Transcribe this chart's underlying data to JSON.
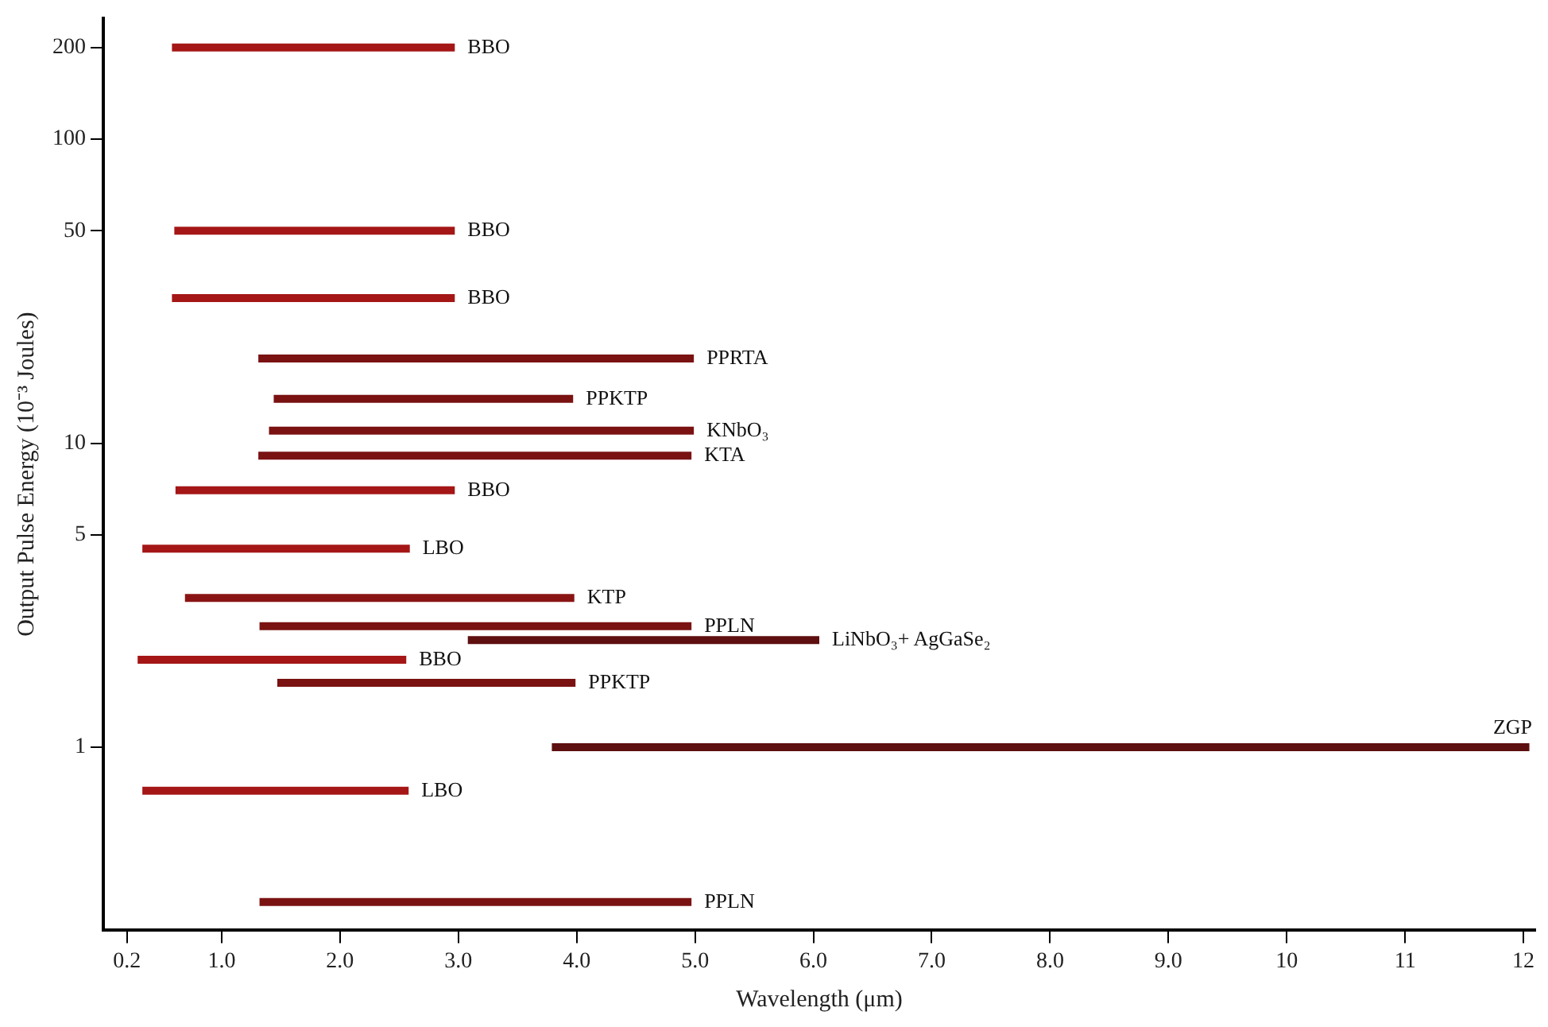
{
  "chart_data": {
    "type": "line",
    "xlabel": "Wavelength (μm)",
    "ylabel": "Output Pulse Energy (10⁻³ Joules)",
    "xlim": [
      0,
      12.1
    ],
    "xticks": [
      {
        "value": 0.2,
        "label": "0.2"
      },
      {
        "value": 1,
        "label": "1.0"
      },
      {
        "value": 2,
        "label": "2.0"
      },
      {
        "value": 3,
        "label": "3.0"
      },
      {
        "value": 4,
        "label": "4.0"
      },
      {
        "value": 5,
        "label": "5.0"
      },
      {
        "value": 6,
        "label": "6.0"
      },
      {
        "value": 7,
        "label": "7.0"
      },
      {
        "value": 8,
        "label": "8.0"
      },
      {
        "value": 9,
        "label": "9.0"
      },
      10,
      11,
      12
    ],
    "ylim": [
      0.25,
      250
    ],
    "yticks": [
      1,
      5,
      10,
      50,
      100,
      200
    ],
    "log": "y",
    "grid": false,
    "legend": false,
    "marker": "none",
    "line_style": "solid",
    "series": [
      {
        "name": "BBO",
        "color": "#a51616",
        "x": [
          0.58,
          2.97
        ],
        "values": [
          200,
          200
        ]
      },
      {
        "name": "BBO",
        "color": "#a51616",
        "x": [
          0.6,
          2.97
        ],
        "values": [
          50,
          50
        ]
      },
      {
        "name": "BBO",
        "color": "#a51616",
        "x": [
          0.58,
          2.97
        ],
        "values": [
          30,
          30
        ]
      },
      {
        "name": "PPRTA",
        "color": "#7a1212",
        "x": [
          1.31,
          4.99
        ],
        "values": [
          19,
          19
        ]
      },
      {
        "name": "PPKTP",
        "color": "#7a1212",
        "x": [
          1.44,
          3.97
        ],
        "values": [
          14,
          14
        ]
      },
      {
        "name": "KNbO₃",
        "color": "#7a1212",
        "x": [
          1.4,
          4.99
        ],
        "values": [
          11,
          11
        ]
      },
      {
        "name": "KTA",
        "color": "#7a1212",
        "x": [
          1.31,
          4.97
        ],
        "values": [
          9.1,
          9.1
        ]
      },
      {
        "name": "BBO",
        "color": "#a51616",
        "x": [
          0.61,
          2.97
        ],
        "values": [
          7,
          7
        ]
      },
      {
        "name": "LBO",
        "color": "#a51616",
        "x": [
          0.33,
          2.59
        ],
        "values": [
          4.5,
          4.5
        ]
      },
      {
        "name": "KTP",
        "color": "#8a1414",
        "x": [
          0.69,
          3.98
        ],
        "values": [
          3.1,
          3.1
        ]
      },
      {
        "name": "PPLN",
        "color": "#7a1212",
        "x": [
          1.32,
          4.97
        ],
        "values": [
          2.5,
          2.5
        ]
      },
      {
        "name": "LiNbO₃+ AgGaSe₂",
        "color": "#5e0f0f",
        "x": [
          3.08,
          6.05
        ],
        "values": [
          2.25,
          2.25
        ]
      },
      {
        "name": "BBO",
        "color": "#a51616",
        "x": [
          0.29,
          2.56
        ],
        "values": [
          1.94,
          1.94
        ]
      },
      {
        "name": "PPKTP",
        "color": "#7a1212",
        "x": [
          1.47,
          3.99
        ],
        "values": [
          1.63,
          1.63
        ]
      },
      {
        "name": "ZGP",
        "color": "#5e0f0f",
        "x": [
          3.79,
          12.05
        ],
        "values": [
          1,
          1
        ]
      },
      {
        "name": "LBO",
        "color": "#a51616",
        "x": [
          0.33,
          2.58
        ],
        "values": [
          0.72,
          0.72
        ]
      },
      {
        "name": "PPLN",
        "color": "#7a1212",
        "x": [
          1.32,
          4.97
        ],
        "values": [
          0.31,
          0.31
        ]
      }
    ]
  }
}
